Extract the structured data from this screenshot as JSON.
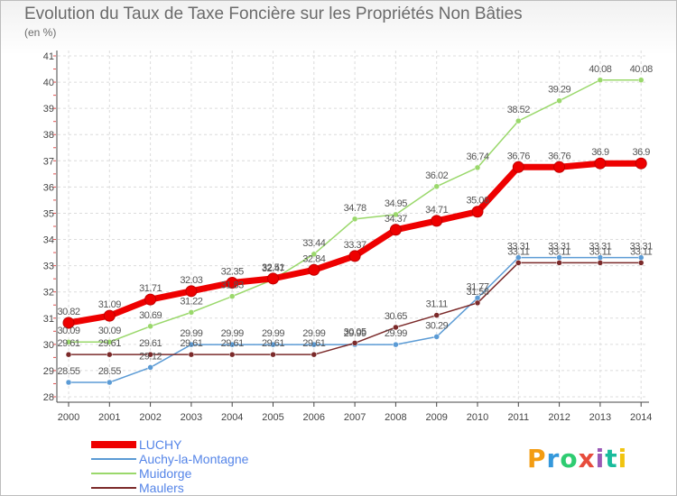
{
  "title": "Evolution du Taux de Taxe Foncière sur les Propriétés Non Bâties",
  "subtitle": "(en %)",
  "logo": "Proxiti",
  "colors": {
    "grid": "#dcdcdc",
    "axis": "#444444",
    "axis_tick_marks": "#e05050",
    "data_label": "#555555",
    "legend_text": "#5585e8",
    "logo": [
      "#f39c12",
      "#3498db",
      "#2ecc71",
      "#e74c3c",
      "#9b59b6",
      "#1abc9c",
      "#f1c40f"
    ]
  },
  "chart_data": {
    "type": "line",
    "title": "Evolution du Taux de Taxe Foncière sur les Propriétés Non Bâties",
    "ylabel": "(en %)",
    "xlabel": "",
    "x": [
      "2000",
      "2001",
      "2002",
      "2003",
      "2004",
      "2005",
      "2006",
      "2007",
      "2008",
      "2009",
      "2010",
      "2011",
      "2012",
      "2013",
      "2014"
    ],
    "yticks": [
      28,
      29,
      30,
      31,
      32,
      33,
      34,
      35,
      36,
      37,
      38,
      39,
      40,
      41
    ],
    "ylim": [
      28,
      41
    ],
    "grid": true,
    "legend_position": "bottom-left",
    "series": [
      {
        "name": "LUCHY",
        "color": "#ee0000",
        "values": [
          30.82,
          31.09,
          31.71,
          32.03,
          32.35,
          32.51,
          32.84,
          33.37,
          34.37,
          34.71,
          35.06,
          36.76,
          36.76,
          36.9,
          36.9
        ],
        "labels": [
          "30.82",
          "31.09",
          "31.71",
          "32.03",
          "32.35",
          "32.51",
          "32.84",
          "33.37",
          "34.37",
          "34.71",
          "35.06",
          "36.76",
          "36.76",
          "36.9",
          "36.9"
        ]
      },
      {
        "name": "Auchy-la-Montagne",
        "color": "#5b9bd5",
        "values": [
          28.55,
          28.55,
          29.12,
          29.99,
          29.99,
          29.99,
          29.99,
          29.99,
          29.99,
          30.29,
          31.77,
          33.31,
          33.31,
          33.31,
          33.31
        ],
        "labels": [
          "28.55",
          "28.55",
          "29.12",
          "29.99",
          "29.99",
          "29.99",
          "29.99",
          "29.99",
          "29.99",
          "30.29",
          "31.77",
          "33.31",
          "33.31",
          "33.31",
          "33.31"
        ]
      },
      {
        "name": "Muidorge",
        "color": "#9ad86b",
        "values": [
          30.09,
          30.09,
          30.69,
          31.22,
          31.83,
          32.47,
          33.44,
          34.78,
          34.95,
          36.02,
          36.74,
          38.52,
          39.29,
          40.08,
          40.08
        ],
        "labels": [
          "30.09",
          "30.09",
          "30.69",
          "31.22",
          "31.83",
          "32.47",
          "33.44",
          "34.78",
          "34.95",
          "36.02",
          "36.74",
          "38.52",
          "39.29",
          "40.08",
          "40.08"
        ]
      },
      {
        "name": "Maulers",
        "color": "#7b2a2a",
        "values": [
          29.61,
          29.61,
          29.61,
          29.61,
          29.61,
          29.61,
          29.61,
          30.05,
          30.65,
          31.11,
          31.58,
          33.11,
          33.11,
          33.11,
          33.11
        ],
        "labels": [
          "29.61",
          "29.61",
          "29.61",
          "29.61",
          "29.61",
          "29.61",
          "29.61",
          "30.05",
          "30.65",
          "31.11",
          "31.58",
          "33.11",
          "33.11",
          "33.11",
          "33.11"
        ]
      }
    ]
  }
}
